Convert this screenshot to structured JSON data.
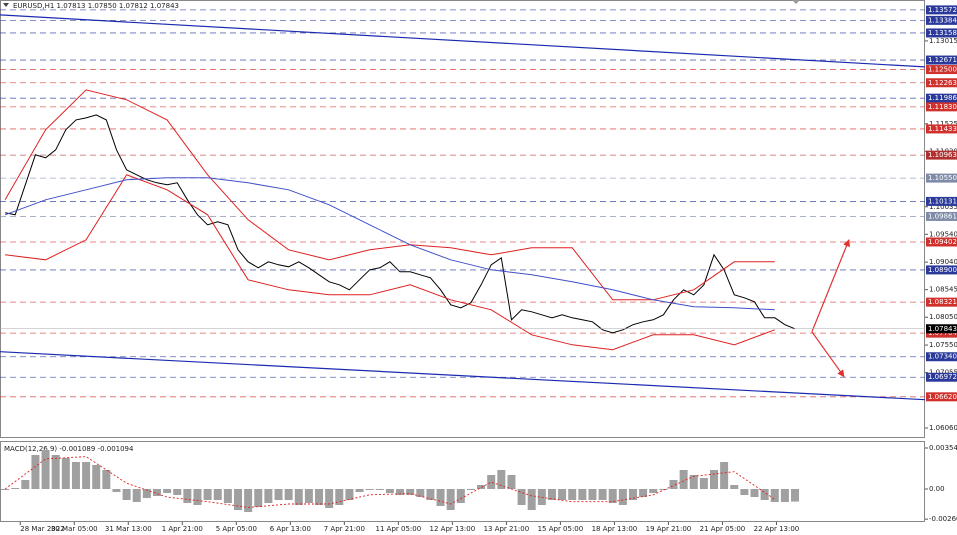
{
  "chart_data": [
    {
      "type": "line",
      "title": "EURUSD,H1  1.07813 1.07850 1.07812 1.07843",
      "xlim": [
        -12,
        536
      ],
      "ylim": [
        1.0588,
        1.1375
      ],
      "yticks": [
        1.13015,
        1.11525,
        {
          "value": 1.1103,
          "label": "1.11030"
        },
        1.10035,
        {
          "value": 1.0954,
          "label": "1.09540"
        },
        {
          "value": 1.0904,
          "label": "1.09040"
        },
        1.08545,
        {
          "value": 1.0805,
          "label": "1.08050"
        },
        {
          "value": 1.0755,
          "label": "1.07550"
        },
        1.07055,
        {
          "value": 1.0606,
          "label": "1.06060"
        }
      ],
      "levels": [
        {
          "value": 1.13572,
          "label": "1.13572",
          "color": "#2b3a9a"
        },
        {
          "value": 1.13384,
          "label": "1.13384",
          "color": "#2b3a9a"
        },
        {
          "value": 1.13158,
          "label": "1.13158",
          "color": "#2b3a9a"
        },
        {
          "value": 1.12671,
          "label": "1.12671",
          "color": "#2b3a9a"
        },
        {
          "value": 1.125,
          "label": "1.12500",
          "color": "#d0312d"
        },
        {
          "value": 1.12263,
          "label": "1.12263",
          "color": "#d0312d"
        },
        {
          "value": 1.11986,
          "label": "1.11986",
          "color": "#2b3a9a"
        },
        {
          "value": 1.1183,
          "label": "1.11830",
          "color": "#d0312d"
        },
        {
          "value": 1.11433,
          "label": "1.11433",
          "color": "#d0312d"
        },
        {
          "value": 1.10963,
          "label": "1.10963",
          "color": "#b03030"
        },
        {
          "value": 1.1055,
          "label": "1.10550",
          "color": "#7f8ca8"
        },
        {
          "value": 1.10131,
          "label": "1.10131",
          "color": "#2b3a9a"
        },
        {
          "value": 1.09861,
          "label": "1.09861",
          "color": "#7f8ca8"
        },
        {
          "value": 1.09402,
          "label": "1.09402",
          "color": "#d0312d"
        },
        {
          "value": 1.089,
          "label": "1.08900",
          "color": "#2b3a9a"
        },
        {
          "value": 1.08321,
          "label": "1.08321",
          "color": "#d0312d"
        },
        {
          "value": 1.07764,
          "label": "1.07764",
          "color": "#d0312d"
        },
        {
          "value": 1.0734,
          "label": "1.07340",
          "color": "#2b3a9a"
        },
        {
          "value": 1.06972,
          "label": "1.06972",
          "color": "#2b3a9a"
        },
        {
          "value": 1.0662,
          "label": "1.06620",
          "color": "#d0312d"
        }
      ],
      "current": {
        "value": 1.07843,
        "label": "1.07843",
        "color": "#000000"
      },
      "trendlines": [
        {
          "x": [
            -12,
            536
          ],
          "y": [
            1.13482,
            1.12548
          ],
          "color": "#1a2bb0"
        },
        {
          "x": [
            -12,
            536
          ],
          "y": [
            1.0743,
            1.06568
          ],
          "color": "#1a2bb0"
        }
      ],
      "arrows": [
        {
          "x": [
            469,
            491
          ],
          "y": [
            1.07789,
            1.09441
          ],
          "color": "#e03030"
        },
        {
          "x": [
            469,
            488
          ],
          "y": [
            1.07789,
            1.06981
          ],
          "color": "#e03030"
        }
      ],
      "series": [
        {
          "color": "#000000",
          "x": [
            -9,
            -3,
            3,
            9,
            15,
            21,
            27,
            33,
            39,
            45,
            51,
            57,
            63,
            69,
            75,
            81,
            87,
            93,
            99,
            105,
            111,
            117,
            123,
            129,
            135,
            141,
            147,
            153,
            159,
            165,
            171,
            177,
            183,
            189,
            195,
            201,
            207,
            213,
            219,
            225,
            231,
            237,
            243,
            249,
            255,
            261,
            267,
            273,
            279,
            285,
            291,
            297,
            303,
            309,
            315,
            321,
            327,
            333,
            339,
            345,
            351,
            357,
            363,
            369,
            375,
            381,
            387,
            393,
            399,
            405,
            411,
            417,
            423,
            429,
            435,
            441,
            447,
            453,
            459
          ],
          "values": [
            1.09926,
            1.0989,
            1.10429,
            1.10968,
            1.10914,
            1.11058,
            1.11417,
            1.11596,
            1.11632,
            1.11686,
            1.11596,
            1.11058,
            1.10698,
            1.10609,
            1.10519,
            1.10465,
            1.10429,
            1.10465,
            1.1016,
            1.0989,
            1.09711,
            1.09764,
            1.09711,
            1.09262,
            1.09046,
            1.08938,
            1.09046,
            1.08992,
            1.08956,
            1.09046,
            1.08938,
            1.08813,
            1.08687,
            1.08633,
            1.08543,
            1.08723,
            1.08902,
            1.08938,
            1.09046,
            1.08866,
            1.08866,
            1.08813,
            1.08759,
            1.08543,
            1.08274,
            1.0822,
            1.0831,
            1.08633,
            1.08992,
            1.09118,
            1.08004,
            1.08184,
            1.08148,
            1.08094,
            1.0804,
            1.08094,
            1.0804,
            1.08004,
            1.07968,
            1.07825,
            1.07771,
            1.07825,
            1.07915,
            1.07968,
            1.08004,
            1.08094,
            1.08364,
            1.08543,
            1.08453,
            1.08633,
            1.09172,
            1.08902,
            1.08453,
            1.084,
            1.08328,
            1.0804,
            1.0804,
            1.07915,
            1.07843
          ]
        },
        {
          "color": "#e02020",
          "x": [
            -9,
            15,
            39,
            63,
            87,
            111,
            135,
            159,
            183,
            207,
            231,
            255,
            279,
            303,
            327,
            351,
            375,
            399,
            423,
            447
          ],
          "values": [
            1.1016,
            1.11417,
            1.12135,
            1.11956,
            1.11596,
            1.10609,
            1.098,
            1.09262,
            1.09082,
            1.09262,
            1.09351,
            1.09298,
            1.09172,
            1.09298,
            1.09298,
            1.08364,
            1.08364,
            1.08543,
            1.09046,
            1.09046
          ]
        },
        {
          "color": "#e02020",
          "x": [
            -9,
            15,
            39,
            63,
            87,
            111,
            135,
            159,
            183,
            207,
            231,
            255,
            279,
            303,
            327,
            351,
            375,
            399,
            423,
            447
          ],
          "values": [
            1.09172,
            1.09082,
            1.09441,
            1.10609,
            1.10339,
            1.0989,
            1.08723,
            1.08543,
            1.08453,
            1.08453,
            1.08633,
            1.08364,
            1.08184,
            1.07735,
            1.07555,
            1.07466,
            1.07735,
            1.07735,
            1.07555,
            1.07825
          ]
        },
        {
          "color": "#4050c8",
          "x": [
            -9,
            15,
            39,
            63,
            87,
            111,
            135,
            159,
            183,
            207,
            231,
            255,
            279,
            303,
            327,
            351,
            375,
            399,
            423,
            447
          ],
          "values": [
            1.0989,
            1.1016,
            1.10339,
            1.10519,
            1.10555,
            1.10555,
            1.10465,
            1.10339,
            1.1007,
            1.09711,
            1.09351,
            1.09082,
            1.08902,
            1.08813,
            1.08687,
            1.08543,
            1.08364,
            1.08238,
            1.0822,
            1.08184
          ]
        }
      ]
    },
    {
      "type": "bar",
      "title": "MACD(12,26,9) -0.001089 -0.001094",
      "color": "#a0a0a0",
      "xlim": [
        -12,
        536
      ],
      "ylim": [
        -0.002853,
        0.004064
      ],
      "yticks": [
        0.003545,
        {
          "value": 0,
          "label": "0.00"
        },
        -0.002607
      ],
      "xticks": [
        {
          "value": 0,
          "label": "28 Mar 2022"
        },
        {
          "value": 32,
          "label": "30 Mar 05:00"
        },
        {
          "value": 64,
          "label": "31 Mar 13:00"
        },
        {
          "value": 96,
          "label": "1 Apr 21:00"
        },
        {
          "value": 128,
          "label": "5 Apr 05:00"
        },
        {
          "value": 160,
          "label": "6 Apr 13:00"
        },
        {
          "value": 192,
          "label": "7 Apr 21:00"
        },
        {
          "value": 224,
          "label": "11 Apr 05:00"
        },
        {
          "value": 256,
          "label": "12 Apr 13:00"
        },
        {
          "value": 288,
          "label": "13 Apr 21:00"
        },
        {
          "value": 320,
          "label": "15 Apr 05:00"
        },
        {
          "value": 352,
          "label": "18 Apr 13:00"
        },
        {
          "value": 384,
          "label": "19 Apr 21:00"
        },
        {
          "value": 416,
          "label": "21 Apr 05:00"
        },
        {
          "value": 448,
          "label": "22 Apr 13:00"
        }
      ],
      "x": [
        -9,
        -3,
        3,
        9,
        15,
        21,
        27,
        33,
        39,
        45,
        51,
        57,
        63,
        69,
        75,
        81,
        87,
        93,
        99,
        105,
        111,
        117,
        123,
        129,
        135,
        141,
        147,
        153,
        159,
        165,
        171,
        177,
        183,
        189,
        195,
        201,
        207,
        213,
        219,
        225,
        231,
        237,
        243,
        249,
        255,
        261,
        267,
        273,
        279,
        285,
        291,
        297,
        303,
        309,
        315,
        321,
        327,
        333,
        339,
        345,
        351,
        357,
        363,
        369,
        375,
        381,
        387,
        393,
        399,
        405,
        411,
        417,
        423,
        429,
        435,
        441,
        447,
        453,
        459
      ],
      "values": [
        -8.6e-05,
        8.6e-05,
        0.000778,
        0.00294,
        0.003372,
        0.00294,
        0.00268,
        0.002334,
        0.002334,
        0.002075,
        0.001643,
        -0.000259,
        -0.000951,
        -0.001124,
        -0.000778,
        -0.000605,
        -0.000346,
        -0.000519,
        -0.00121,
        -0.001383,
        -0.000951,
        -0.000951,
        -0.00121,
        -0.001816,
        -0.001989,
        -0.001556,
        -0.00121,
        -0.000951,
        -0.000951,
        -0.001383,
        -0.00121,
        -0.001383,
        -0.001643,
        -0.001383,
        -0.000951,
        -0.000259,
        -8.6e-05,
        -8.6e-05,
        -0.000346,
        -0.000519,
        -0.000519,
        -0.000692,
        -0.000951,
        -0.00147,
        -0.001816,
        -0.00121,
        -8.6e-05,
        0.000346,
        0.00121,
        0.001643,
        0.00121,
        -0.001383,
        -0.001816,
        -0.001383,
        -0.000951,
        -0.000951,
        -0.000951,
        -0.000951,
        -0.000951,
        -0.000951,
        -0.00121,
        -0.001383,
        -0.000951,
        -0.000692,
        -0.000346,
        -8.6e-05,
        0.000778,
        0.001643,
        0.00121,
        0.000951,
        0.001643,
        0.002334,
        0.000346,
        -0.000519,
        -0.000692,
        -0.000951,
        -0.001124,
        -0.001124,
        -0.001089
      ],
      "signal": {
        "color": "#e02020",
        "x": [
          -9,
          15,
          39,
          63,
          87,
          111,
          135,
          159,
          183,
          207,
          231,
          255,
          279,
          303,
          327,
          351,
          375,
          399,
          423,
          447
        ],
        "values": [
          0,
          0.0026,
          0.0028,
          0.0005,
          -0.0007,
          -0.0011,
          -0.0016,
          -0.0013,
          -0.0013,
          -0.0005,
          -0.0004,
          -0.0013,
          0.0006,
          -0.0006,
          -0.0011,
          -0.0011,
          -0.0005,
          0.0011,
          0.0015,
          -0.0009
        ]
      }
    }
  ]
}
